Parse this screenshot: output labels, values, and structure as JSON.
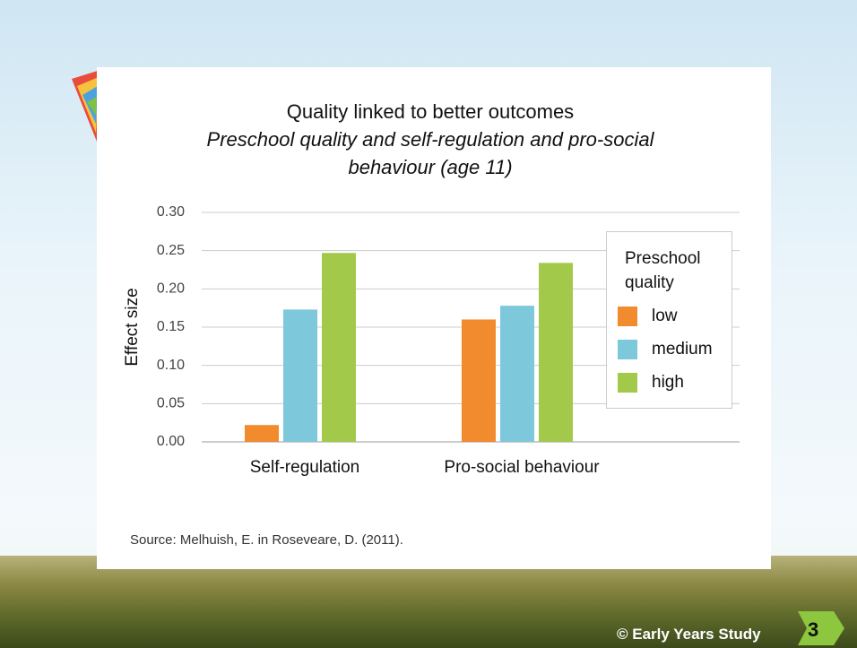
{
  "chart_data": {
    "type": "bar",
    "title": "Quality linked to better outcomes",
    "subtitle": "Preschool quality and self-regulation and pro-social behaviour (age 11)",
    "y_label": "Effect size",
    "categories": [
      "Self-regulation",
      "Pro-social behaviour"
    ],
    "legend_title": "Preschool quality",
    "series": [
      {
        "name": "low",
        "color": "#f28a2e",
        "values": [
          0.022,
          0.16
        ]
      },
      {
        "name": "medium",
        "color": "#7ec8dc",
        "values": [
          0.173,
          0.178
        ]
      },
      {
        "name": "high",
        "color": "#a3c94a",
        "values": [
          0.247,
          0.234
        ]
      }
    ],
    "ylim": [
      0,
      0.3
    ],
    "yticks": [
      {
        "value": 0,
        "label": "0.00"
      },
      {
        "value": 0.05,
        "label": "0.05"
      },
      {
        "value": 0.1,
        "label": "0.10"
      },
      {
        "value": 0.15,
        "label": "0.15"
      },
      {
        "value": 0.2,
        "label": "0.20"
      },
      {
        "value": 0.25,
        "label": "0.25"
      },
      {
        "value": 0.3,
        "label": "0.30"
      }
    ],
    "grid": true,
    "legend": "right",
    "source": "Source: Melhuish, E. in Roseveare, D. (2011)."
  },
  "footer": {
    "text": "© Early Years Study",
    "number": "3"
  }
}
